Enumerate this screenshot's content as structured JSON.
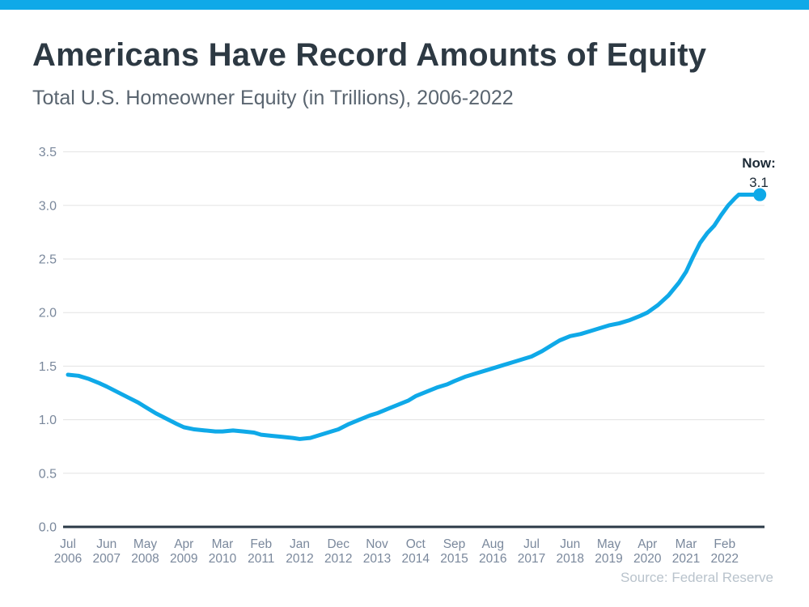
{
  "header": {
    "title": "Americans Have Record Amounts of Equity",
    "subtitle": "Total U.S. Homeowner Equity (in Trillions), 2006-2022"
  },
  "footer": {
    "source": "Source: Federal Reserve"
  },
  "theme": {
    "accent": "#0fa9e8",
    "title_color": "#2d3943",
    "subtitle_color": "#5a6570",
    "tick_color": "#7a889c",
    "grid_color": "#e3e3e3",
    "axis_color": "#2b3a47",
    "source_color": "#b9c3cc",
    "annotation_color": "#1c2a36"
  },
  "chart_data": {
    "type": "line",
    "title": "Americans Have Record Amounts of Equity",
    "subtitle": "Total U.S. Homeowner Equity (in Trillions), 2006-2022",
    "xlabel": "",
    "ylabel": "",
    "ylim": [
      0,
      3.5
    ],
    "grid": "horizontal",
    "legend": "none",
    "line_color": "#0fa9e8",
    "end_dot": true,
    "annotation": {
      "label": "Now:",
      "value": "3.1",
      "at_value": 3.1
    },
    "y_ticks": [
      {
        "label": "0.0",
        "value": 0.0
      },
      {
        "label": "0.5",
        "value": 0.5
      },
      {
        "label": "1.0",
        "value": 1.0
      },
      {
        "label": "1.5",
        "value": 1.5
      },
      {
        "label": "2.0",
        "value": 2.0
      },
      {
        "label": "2.5",
        "value": 2.5
      },
      {
        "label": "3.0",
        "value": 3.0
      },
      {
        "label": "3.5",
        "value": 3.5
      }
    ],
    "x_ticks": [
      {
        "month": "Jul",
        "year": "2006",
        "month_index": 0
      },
      {
        "month": "Jun",
        "year": "2007",
        "month_index": 11
      },
      {
        "month": "May",
        "year": "2008",
        "month_index": 22
      },
      {
        "month": "Apr",
        "year": "2009",
        "month_index": 33
      },
      {
        "month": "Mar",
        "year": "2010",
        "month_index": 44
      },
      {
        "month": "Feb",
        "year": "2011",
        "month_index": 55
      },
      {
        "month": "Jan",
        "year": "2012",
        "month_index": 66
      },
      {
        "month": "Dec",
        "year": "2012",
        "month_index": 77
      },
      {
        "month": "Nov",
        "year": "2013",
        "month_index": 88
      },
      {
        "month": "Oct",
        "year": "2014",
        "month_index": 99
      },
      {
        "month": "Sep",
        "year": "2015",
        "month_index": 110
      },
      {
        "month": "Aug",
        "year": "2016",
        "month_index": 121
      },
      {
        "month": "Jul",
        "year": "2017",
        "month_index": 132
      },
      {
        "month": "Jun",
        "year": "2018",
        "month_index": 143
      },
      {
        "month": "May",
        "year": "2019",
        "month_index": 154
      },
      {
        "month": "Apr",
        "year": "2020",
        "month_index": 165
      },
      {
        "month": "Mar",
        "year": "2021",
        "month_index": 176
      },
      {
        "month": "Feb",
        "year": "2022",
        "month_index": 187
      }
    ],
    "series": [
      {
        "name": "Total U.S. Homeowner Equity (in Trillions)",
        "x_months_from_jul_2006": [
          0,
          3,
          6,
          9,
          11,
          14,
          17,
          20,
          22,
          25,
          28,
          31,
          33,
          36,
          39,
          42,
          44,
          47,
          50,
          53,
          55,
          58,
          61,
          64,
          66,
          69,
          72,
          75,
          77,
          80,
          83,
          86,
          88,
          91,
          94,
          97,
          99,
          102,
          105,
          108,
          110,
          113,
          116,
          119,
          121,
          124,
          127,
          130,
          132,
          135,
          138,
          140,
          143,
          146,
          149,
          152,
          154,
          157,
          160,
          163,
          165,
          168,
          171,
          174,
          176,
          178,
          180,
          182,
          184,
          186,
          188,
          190,
          191,
          197
        ],
        "values": [
          1.42,
          1.41,
          1.38,
          1.34,
          1.31,
          1.26,
          1.21,
          1.16,
          1.12,
          1.06,
          1.01,
          0.96,
          0.93,
          0.91,
          0.9,
          0.89,
          0.89,
          0.9,
          0.89,
          0.88,
          0.86,
          0.85,
          0.84,
          0.83,
          0.82,
          0.83,
          0.86,
          0.89,
          0.91,
          0.96,
          1.0,
          1.04,
          1.06,
          1.1,
          1.14,
          1.18,
          1.22,
          1.26,
          1.3,
          1.33,
          1.36,
          1.4,
          1.43,
          1.46,
          1.48,
          1.51,
          1.54,
          1.57,
          1.59,
          1.64,
          1.7,
          1.74,
          1.78,
          1.8,
          1.83,
          1.86,
          1.88,
          1.9,
          1.93,
          1.97,
          2.0,
          2.07,
          2.16,
          2.28,
          2.38,
          2.52,
          2.65,
          2.74,
          2.81,
          2.91,
          3.0,
          3.07,
          3.1,
          3.1
        ]
      }
    ]
  }
}
